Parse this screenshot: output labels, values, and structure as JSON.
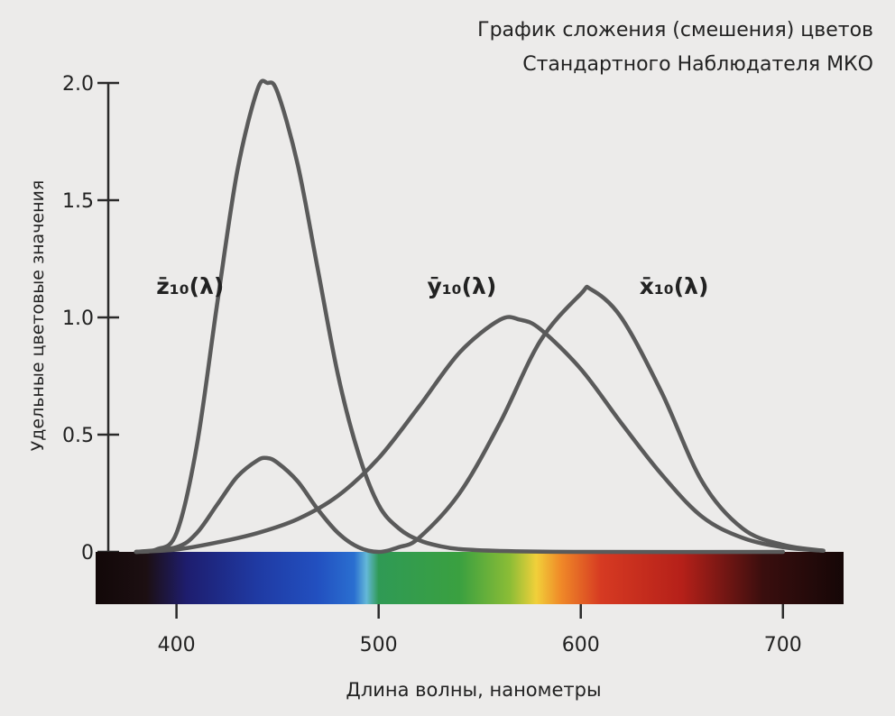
{
  "chart_data": {
    "type": "line",
    "title_lines": [
      "График сложения (смешения) цветов",
      "Стандартного Наблюдателя МКО"
    ],
    "xlabel": "Длина волны, нанометры",
    "ylabel": "Удельные цветовые значения",
    "xlim": [
      360,
      730
    ],
    "ylim": [
      0,
      2.0
    ],
    "xticks": [
      400,
      500,
      600,
      700
    ],
    "yticks": [
      {
        "value": 0,
        "label": "0"
      },
      {
        "value": 0.5,
        "label": "0.5"
      },
      {
        "value": 1.0,
        "label": "1.0"
      },
      {
        "value": 1.5,
        "label": "1.5"
      },
      {
        "value": 2.0,
        "label": "2.0"
      }
    ],
    "colors": {
      "curve": "#5a5a5a",
      "axis": "#2a2a2a",
      "text": "#222222",
      "background": "#ecebea"
    },
    "spectrum_band": {
      "x_range": [
        360,
        730
      ],
      "stops": [
        {
          "nm": 360,
          "color": "#120808"
        },
        {
          "nm": 385,
          "color": "#1c0f12"
        },
        {
          "nm": 405,
          "color": "#1e1d6e"
        },
        {
          "nm": 440,
          "color": "#1f3aa3"
        },
        {
          "nm": 470,
          "color": "#2250c0"
        },
        {
          "nm": 488,
          "color": "#2a6fd0"
        },
        {
          "nm": 494,
          "color": "#64b8d8"
        },
        {
          "nm": 500,
          "color": "#2f9a55"
        },
        {
          "nm": 540,
          "color": "#3aa040"
        },
        {
          "nm": 565,
          "color": "#8cbd36"
        },
        {
          "nm": 578,
          "color": "#f1d03a"
        },
        {
          "nm": 590,
          "color": "#f08a28"
        },
        {
          "nm": 610,
          "color": "#d63a22"
        },
        {
          "nm": 650,
          "color": "#b52019"
        },
        {
          "nm": 690,
          "color": "#3a0e0e"
        },
        {
          "nm": 730,
          "color": "#150707"
        }
      ]
    },
    "series": [
      {
        "name": "z̄₁₀(λ)",
        "x": [
          380,
          390,
          400,
          410,
          420,
          430,
          440,
          445,
          450,
          460,
          470,
          480,
          490,
          500,
          510,
          520,
          530,
          540,
          560,
          600,
          700
        ],
        "values": [
          0.0,
          0.01,
          0.08,
          0.45,
          1.05,
          1.62,
          1.97,
          2.0,
          1.96,
          1.65,
          1.2,
          0.75,
          0.42,
          0.2,
          0.1,
          0.05,
          0.025,
          0.012,
          0.004,
          0.0,
          0.0
        ]
      },
      {
        "name": "ȳ₁₀(λ)",
        "x": [
          380,
          400,
          420,
          440,
          460,
          480,
          500,
          520,
          540,
          560,
          570,
          580,
          600,
          620,
          640,
          660,
          680,
          700,
          720
        ],
        "values": [
          0.0,
          0.01,
          0.04,
          0.08,
          0.14,
          0.24,
          0.4,
          0.62,
          0.85,
          0.99,
          0.99,
          0.95,
          0.78,
          0.55,
          0.33,
          0.15,
          0.06,
          0.02,
          0.005
        ]
      },
      {
        "name": "x̄₁₀(λ)",
        "x": [
          380,
          400,
          410,
          420,
          430,
          440,
          445,
          450,
          460,
          470,
          480,
          490,
          500,
          510,
          520,
          540,
          560,
          580,
          600,
          605,
          620,
          640,
          660,
          680,
          700,
          720
        ],
        "values": [
          0.0,
          0.02,
          0.08,
          0.2,
          0.32,
          0.39,
          0.4,
          0.38,
          0.3,
          0.18,
          0.08,
          0.02,
          0.0,
          0.02,
          0.06,
          0.25,
          0.55,
          0.9,
          1.1,
          1.12,
          1.0,
          0.68,
          0.3,
          0.1,
          0.03,
          0.005
        ]
      }
    ],
    "series_label_positions": [
      {
        "name": "z̄₁₀(λ)",
        "x_nm": 390,
        "y_value": 1.1
      },
      {
        "name": "ȳ₁₀(λ)",
        "x_nm": 524,
        "y_value": 1.1
      },
      {
        "name": "x̄₁₀(λ)",
        "x_nm": 629,
        "y_value": 1.1
      }
    ]
  }
}
